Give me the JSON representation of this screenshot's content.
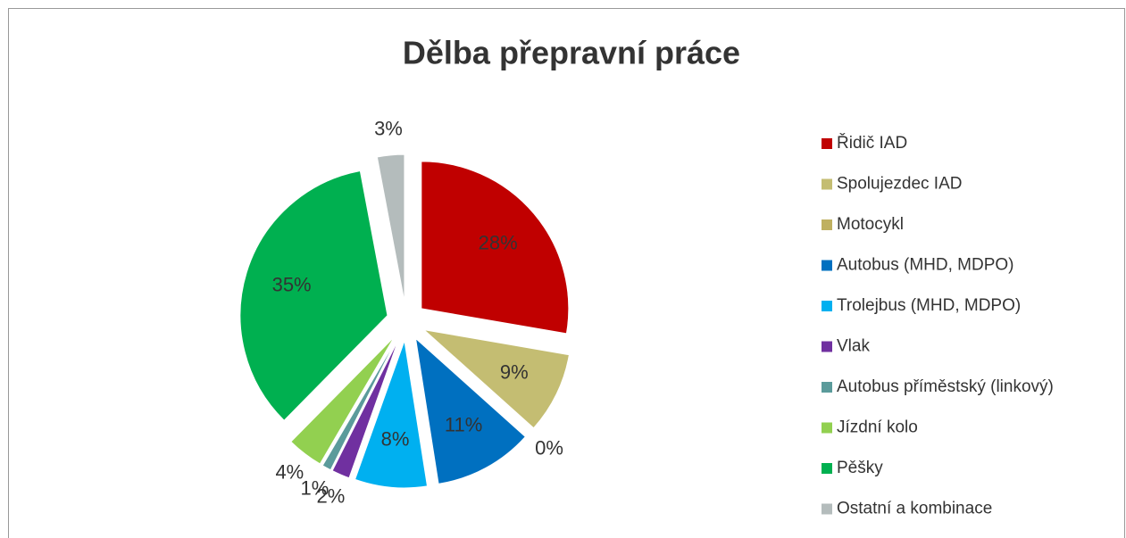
{
  "chart_data": {
    "type": "pie",
    "title": "Dělba přepravní práce",
    "categories": [
      "Řidič IAD",
      "Spolujezdec IAD",
      "Motocykl",
      "Autobus (MHD, MDPO)",
      "Trolejbus (MHD, MDPO)",
      "Vlak",
      "Autobus příměstský (linkový)",
      "Jízdní kolo",
      "Pěšky",
      "Ostatní a kombinace"
    ],
    "values": [
      28,
      9,
      0,
      11,
      8,
      2,
      1,
      4,
      35,
      3
    ],
    "value_labels": [
      "28%",
      "9%",
      "0%",
      "11%",
      "8%",
      "2%",
      "1%",
      "4%",
      "35%",
      "3%"
    ],
    "colors": [
      "#c00000",
      "#c4bd72",
      "#bfb060",
      "#0070c0",
      "#00b0f0",
      "#7030a0",
      "#5b9b9b",
      "#92d050",
      "#00b050",
      "#b4bcbc"
    ],
    "legend": "right"
  }
}
